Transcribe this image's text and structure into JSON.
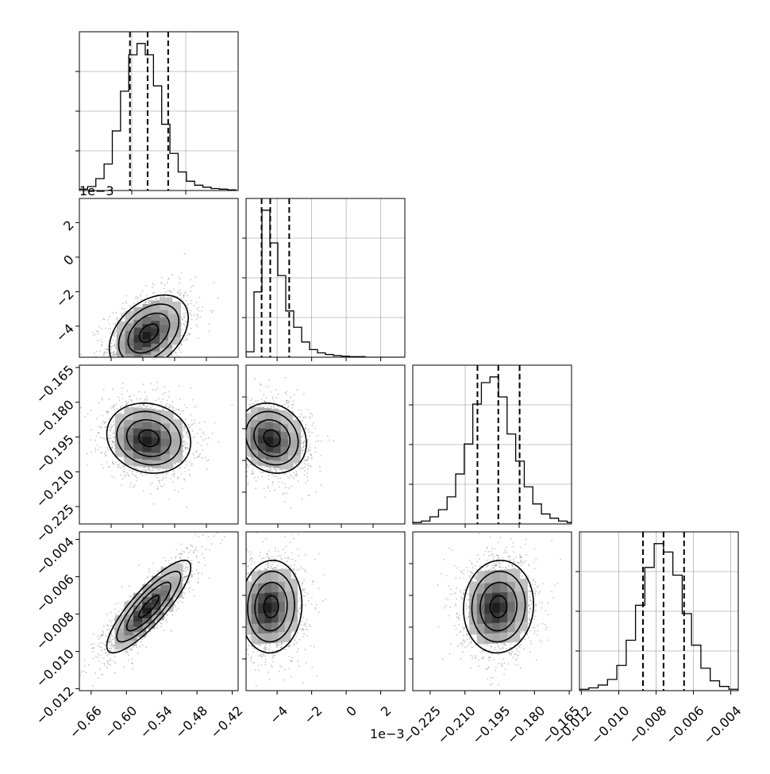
{
  "figure": {
    "type": "corner-plot",
    "offset_labels": {
      "row_2_y": "1e−3",
      "col_2_x": "1e−3"
    }
  },
  "style": {
    "hist_color": "#000000",
    "grid_color": "#b0b0b0",
    "median_line_color": "#000000",
    "scatter_color": "#7f7f7f"
  },
  "chart_data": [
    {
      "type": "histogram",
      "panel": "hist-0",
      "row": 0,
      "col": 0,
      "xlim": [
        -0.68,
        -0.41
      ],
      "bin_edges": [
        -0.68,
        -0.666,
        -0.652,
        -0.638,
        -0.624,
        -0.61,
        -0.596,
        -0.582,
        -0.568,
        -0.554,
        -0.54,
        -0.526,
        -0.512,
        -0.498,
        -0.484,
        -0.47,
        -0.456,
        -0.442,
        -0.428,
        -0.414
      ],
      "counts": [
        2,
        6,
        18,
        40,
        90,
        150,
        205,
        222,
        205,
        158,
        100,
        56,
        28,
        14,
        8,
        5,
        3,
        2,
        1
      ],
      "quantile_lines": [
        -0.594,
        -0.564,
        -0.529
      ],
      "show_x_ticklabels": false,
      "show_y_ticklabels": false
    },
    {
      "type": "histogram",
      "panel": "hist-1",
      "row": 1,
      "col": 1,
      "xlim": [
        -5.8,
        3.4
      ],
      "x_ticks": [
        -4,
        -2,
        0,
        2
      ],
      "bin_edges": [
        -5.8,
        -5.34,
        -4.88,
        -4.42,
        -3.96,
        -3.5,
        -3.04,
        -2.58,
        -2.12,
        -1.66,
        -1.2,
        -0.74,
        -0.28,
        0.18,
        0.64,
        1.1,
        1.56,
        2.02,
        2.48,
        2.94,
        3.4
      ],
      "counts": [
        10,
        120,
        270,
        210,
        150,
        85,
        55,
        28,
        14,
        8,
        5,
        3,
        2,
        1,
        1,
        0,
        0,
        0,
        0,
        0
      ],
      "quantile_lines": [
        -4.9,
        -4.4,
        -3.3
      ],
      "show_x_ticklabels": false,
      "show_y_ticklabels": false
    },
    {
      "type": "histogram",
      "panel": "hist-2",
      "row": 2,
      "col": 2,
      "xlim": [
        -0.2325,
        -0.164
      ],
      "bin_edges": [
        -0.2325,
        -0.2288,
        -0.2251,
        -0.2214,
        -0.2177,
        -0.214,
        -0.2103,
        -0.2066,
        -0.2029,
        -0.1992,
        -0.1955,
        -0.1918,
        -0.1881,
        -0.1844,
        -0.1807,
        -0.177,
        -0.1733,
        -0.1696,
        -0.1659,
        -0.164
      ],
      "counts": [
        2,
        4,
        10,
        20,
        38,
        70,
        112,
        168,
        198,
        206,
        178,
        126,
        88,
        52,
        28,
        14,
        8,
        4,
        2
      ],
      "quantile_lines": [
        -0.2046,
        -0.1956,
        -0.1864
      ],
      "show_x_ticklabels": false,
      "show_y_ticklabels": false
    },
    {
      "type": "histogram",
      "panel": "hist-3",
      "row": 3,
      "col": 3,
      "xlim": [
        -0.0121,
        -0.0036
      ],
      "x_ticks": [
        -0.012,
        -0.01,
        -0.008,
        -0.006,
        -0.004
      ],
      "x_ticklabels": [
        "−0.012",
        "−0.010",
        "−0.008",
        "−0.006",
        "−0.004"
      ],
      "bin_edges": [
        -0.0121,
        -0.0116,
        -0.0111,
        -0.0106,
        -0.0101,
        -0.0096,
        -0.0091,
        -0.0086,
        -0.0081,
        -0.0076,
        -0.0071,
        -0.0066,
        -0.0061,
        -0.0056,
        -0.0051,
        -0.0046,
        -0.0041,
        -0.0036
      ],
      "counts": [
        2,
        4,
        8,
        16,
        36,
        72,
        122,
        176,
        210,
        198,
        165,
        110,
        65,
        32,
        14,
        6,
        2
      ],
      "quantile_lines": [
        -0.0087,
        -0.0076,
        -0.0065
      ],
      "show_y_ticklabels": false
    },
    {
      "type": "scatter-contour",
      "panel": "pair-1-0",
      "row": 1,
      "col": 0,
      "xlim": [
        -0.68,
        -0.41
      ],
      "ylim": [
        -5.8,
        3.4
      ],
      "y_ticks": [
        -4,
        -2,
        0,
        2
      ],
      "y_ticklabels": [
        "−4",
        "−2",
        "0",
        "2"
      ],
      "center": [
        -0.562,
        -4.4
      ],
      "sd": [
        0.032,
        1.05
      ],
      "rho": 0.4,
      "contour_levels": [
        0.5,
        1.1,
        1.6,
        2.1
      ],
      "density_shading": true
    },
    {
      "type": "scatter-contour",
      "panel": "pair-2-0",
      "row": 2,
      "col": 0,
      "xlim": [
        -0.68,
        -0.41
      ],
      "ylim": [
        -0.2325,
        -0.164
      ],
      "y_ticks": [
        -0.165,
        -0.18,
        -0.195,
        -0.21,
        -0.225
      ],
      "y_ticklabels": [
        "−0.165",
        "−0.180",
        "−0.195",
        "−0.210",
        "−0.225"
      ],
      "center": [
        -0.562,
        -0.1955
      ],
      "sd": [
        0.034,
        0.0072
      ],
      "rho": -0.12,
      "contour_levels": [
        0.5,
        1.1,
        1.6,
        2.1
      ],
      "density_shading": true
    },
    {
      "type": "scatter-contour",
      "panel": "pair-2-1",
      "row": 2,
      "col": 1,
      "xlim": [
        -5.8,
        3.4
      ],
      "ylim": [
        -0.2325,
        -0.164
      ],
      "center": [
        -4.3,
        -0.1955
      ],
      "sd": [
        0.95,
        0.0072
      ],
      "rho": -0.15,
      "contour_levels": [
        0.5,
        1.1,
        1.6,
        2.1
      ],
      "density_shading": true
    },
    {
      "type": "scatter-contour",
      "panel": "pair-2-2-unused",
      "row": -1,
      "col": -1,
      "xlim": [
        0,
        1
      ],
      "ylim": [
        0,
        1
      ],
      "center": [
        0.5,
        0.5
      ],
      "sd": [
        0.1,
        0.1
      ],
      "rho": 0,
      "contour_levels": [],
      "density_shading": false,
      "hidden": true
    },
    {
      "type": "scatter-contour",
      "panel": "pair-3-0",
      "row": 3,
      "col": 0,
      "xlim": [
        -0.68,
        -0.41
      ],
      "ylim": [
        -0.0121,
        -0.0036
      ],
      "x_ticks": [
        -0.66,
        -0.6,
        -0.54,
        -0.48,
        -0.42
      ],
      "x_ticklabels": [
        "−0.66",
        "−0.60",
        "−0.54",
        "−0.48",
        "−0.42"
      ],
      "y_ticks": [
        -0.004,
        -0.006,
        -0.008,
        -0.01,
        -0.012
      ],
      "y_ticklabels": [
        "−0.004",
        "−0.006",
        "−0.008",
        "−0.010",
        "−0.012"
      ],
      "center": [
        -0.562,
        -0.0076
      ],
      "sd": [
        0.034,
        0.00118
      ],
      "rho": 0.85,
      "contour_levels": [
        0.5,
        1.1,
        1.6,
        2.1
      ],
      "density_shading": true
    },
    {
      "type": "scatter-contour",
      "panel": "pair-3-1",
      "row": 3,
      "col": 1,
      "xlim": [
        -5.8,
        3.4
      ],
      "ylim": [
        -0.0121,
        -0.0036
      ],
      "x_ticks": [
        -4,
        -2,
        0,
        2
      ],
      "x_ticklabels": [
        "−4",
        "−2",
        "0",
        "2"
      ],
      "center": [
        -4.35,
        -0.0076
      ],
      "sd": [
        0.85,
        0.00118
      ],
      "rho": 0.05,
      "contour_levels": [
        0.5,
        1.1,
        1.6,
        2.1
      ],
      "density_shading": true
    },
    {
      "type": "scatter-contour",
      "panel": "pair-3-2",
      "row": 3,
      "col": 2,
      "xlim": [
        -0.2325,
        -0.164
      ],
      "ylim": [
        -0.0121,
        -0.0036
      ],
      "x_ticks": [
        -0.225,
        -0.21,
        -0.195,
        -0.18,
        -0.165
      ],
      "x_ticklabels": [
        "−0.225",
        "−0.210",
        "−0.195",
        "−0.180",
        "−0.165"
      ],
      "center": [
        -0.1955,
        -0.0076
      ],
      "sd": [
        0.0072,
        0.00118
      ],
      "rho": 0.05,
      "contour_levels": [
        0.5,
        1.1,
        1.6,
        2.1
      ],
      "density_shading": true
    }
  ]
}
